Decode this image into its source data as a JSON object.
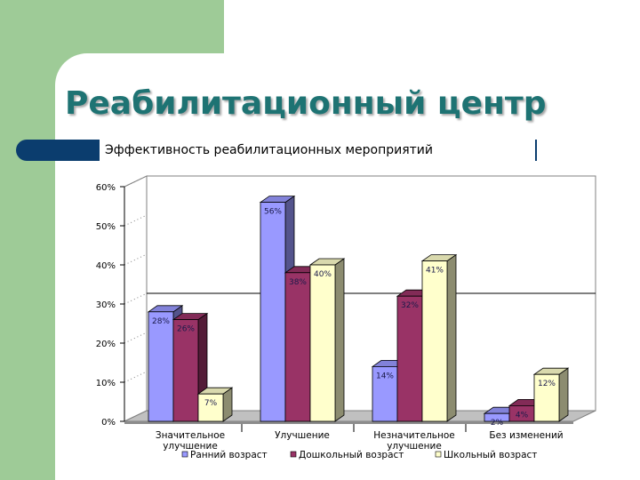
{
  "page": {
    "title": "Реабилитационный центр",
    "subtitle": "Эффективность реабилитационных мероприятий"
  },
  "chart_data": {
    "type": "bar",
    "style": "3d-clustered",
    "categories": [
      [
        "Значительное",
        "улучшение"
      ],
      [
        "Улучшение"
      ],
      [
        "Незначительное",
        "улучшение"
      ],
      [
        "Без изменений"
      ]
    ],
    "series": [
      {
        "name": "Ранний возраст",
        "color": "#9999ff",
        "values": [
          28,
          56,
          14,
          2
        ]
      },
      {
        "name": "Дошкольный возраст",
        "color": "#993366",
        "values": [
          26,
          38,
          32,
          4
        ]
      },
      {
        "name": "Школьный возраст",
        "color": "#ffffcc",
        "values": [
          7,
          40,
          41,
          12
        ]
      }
    ],
    "value_labels": [
      [
        "28%",
        "56%",
        "14%",
        "2%"
      ],
      [
        "26%",
        "38%",
        "32%",
        "4%"
      ],
      [
        "7%",
        "40%",
        "41%",
        "12%"
      ]
    ],
    "yticks": [
      "0%",
      "10%",
      "20%",
      "30%",
      "40%",
      "50%",
      "60%"
    ],
    "ylim": [
      0,
      60
    ],
    "reference_line": 30,
    "legend_position": "bottom"
  }
}
